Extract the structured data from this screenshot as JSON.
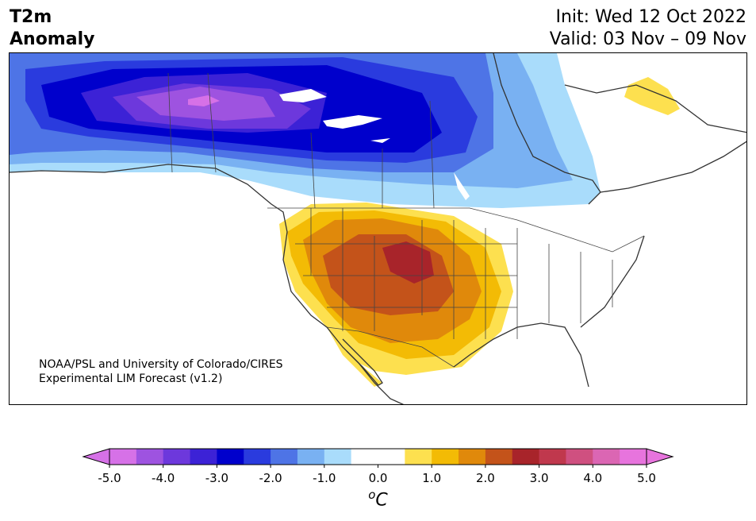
{
  "header": {
    "title_line1": "T2m",
    "title_line2": "Anomaly",
    "init_text": "Init: Wed 12 Oct 2022",
    "valid_text": "Valid: 03 Nov – 09 Nov"
  },
  "credit": {
    "line1": "NOAA/PSL and University of Colorado/CIRES",
    "line2": "Experimental LIM Forecast (v1.2)"
  },
  "colorbar": {
    "tick_labels": [
      "-5.0",
      "-4.0",
      "-3.0",
      "-2.0",
      "-1.0",
      "0.0",
      "1.0",
      "2.0",
      "3.0",
      "4.0",
      "5.0"
    ],
    "unit": "oC",
    "unit_base": "o",
    "unit_letter": "C",
    "colors": [
      "#d671e7",
      "#9e53e0",
      "#6d38dc",
      "#3c22d6",
      "#0000cc",
      "#2a3bde",
      "#4e74e6",
      "#79b1f2",
      "#a9dcfb",
      "#ffffff",
      "#ffffff",
      "#fde04f",
      "#f3bb05",
      "#e0890b",
      "#c4531a",
      "#a8242a",
      "#c0384d",
      "#cf5080",
      "#db66b3",
      "#e774dd"
    ],
    "left_extend_color": "#d671e7",
    "right_extend_color": "#e774dd"
  },
  "map": {
    "anomaly_colors": {
      "cold_very_strong": "#0000cc",
      "cold_strong": "#3c22d6",
      "cold_purple": "#6d38dc",
      "cold_violet": "#9e53e0",
      "cold_pink": "#d671e7",
      "cold_medium": "#2a3bde",
      "cold_light": "#4e74e6",
      "cold_pale": "#79b1f2",
      "cold_palest": "#a9dcfb",
      "warm_palest": "#fde04f",
      "warm_pale": "#f3bb05",
      "warm_medium": "#e0890b",
      "warm_strong": "#c4531a",
      "warm_very_strong": "#a8242a"
    }
  }
}
